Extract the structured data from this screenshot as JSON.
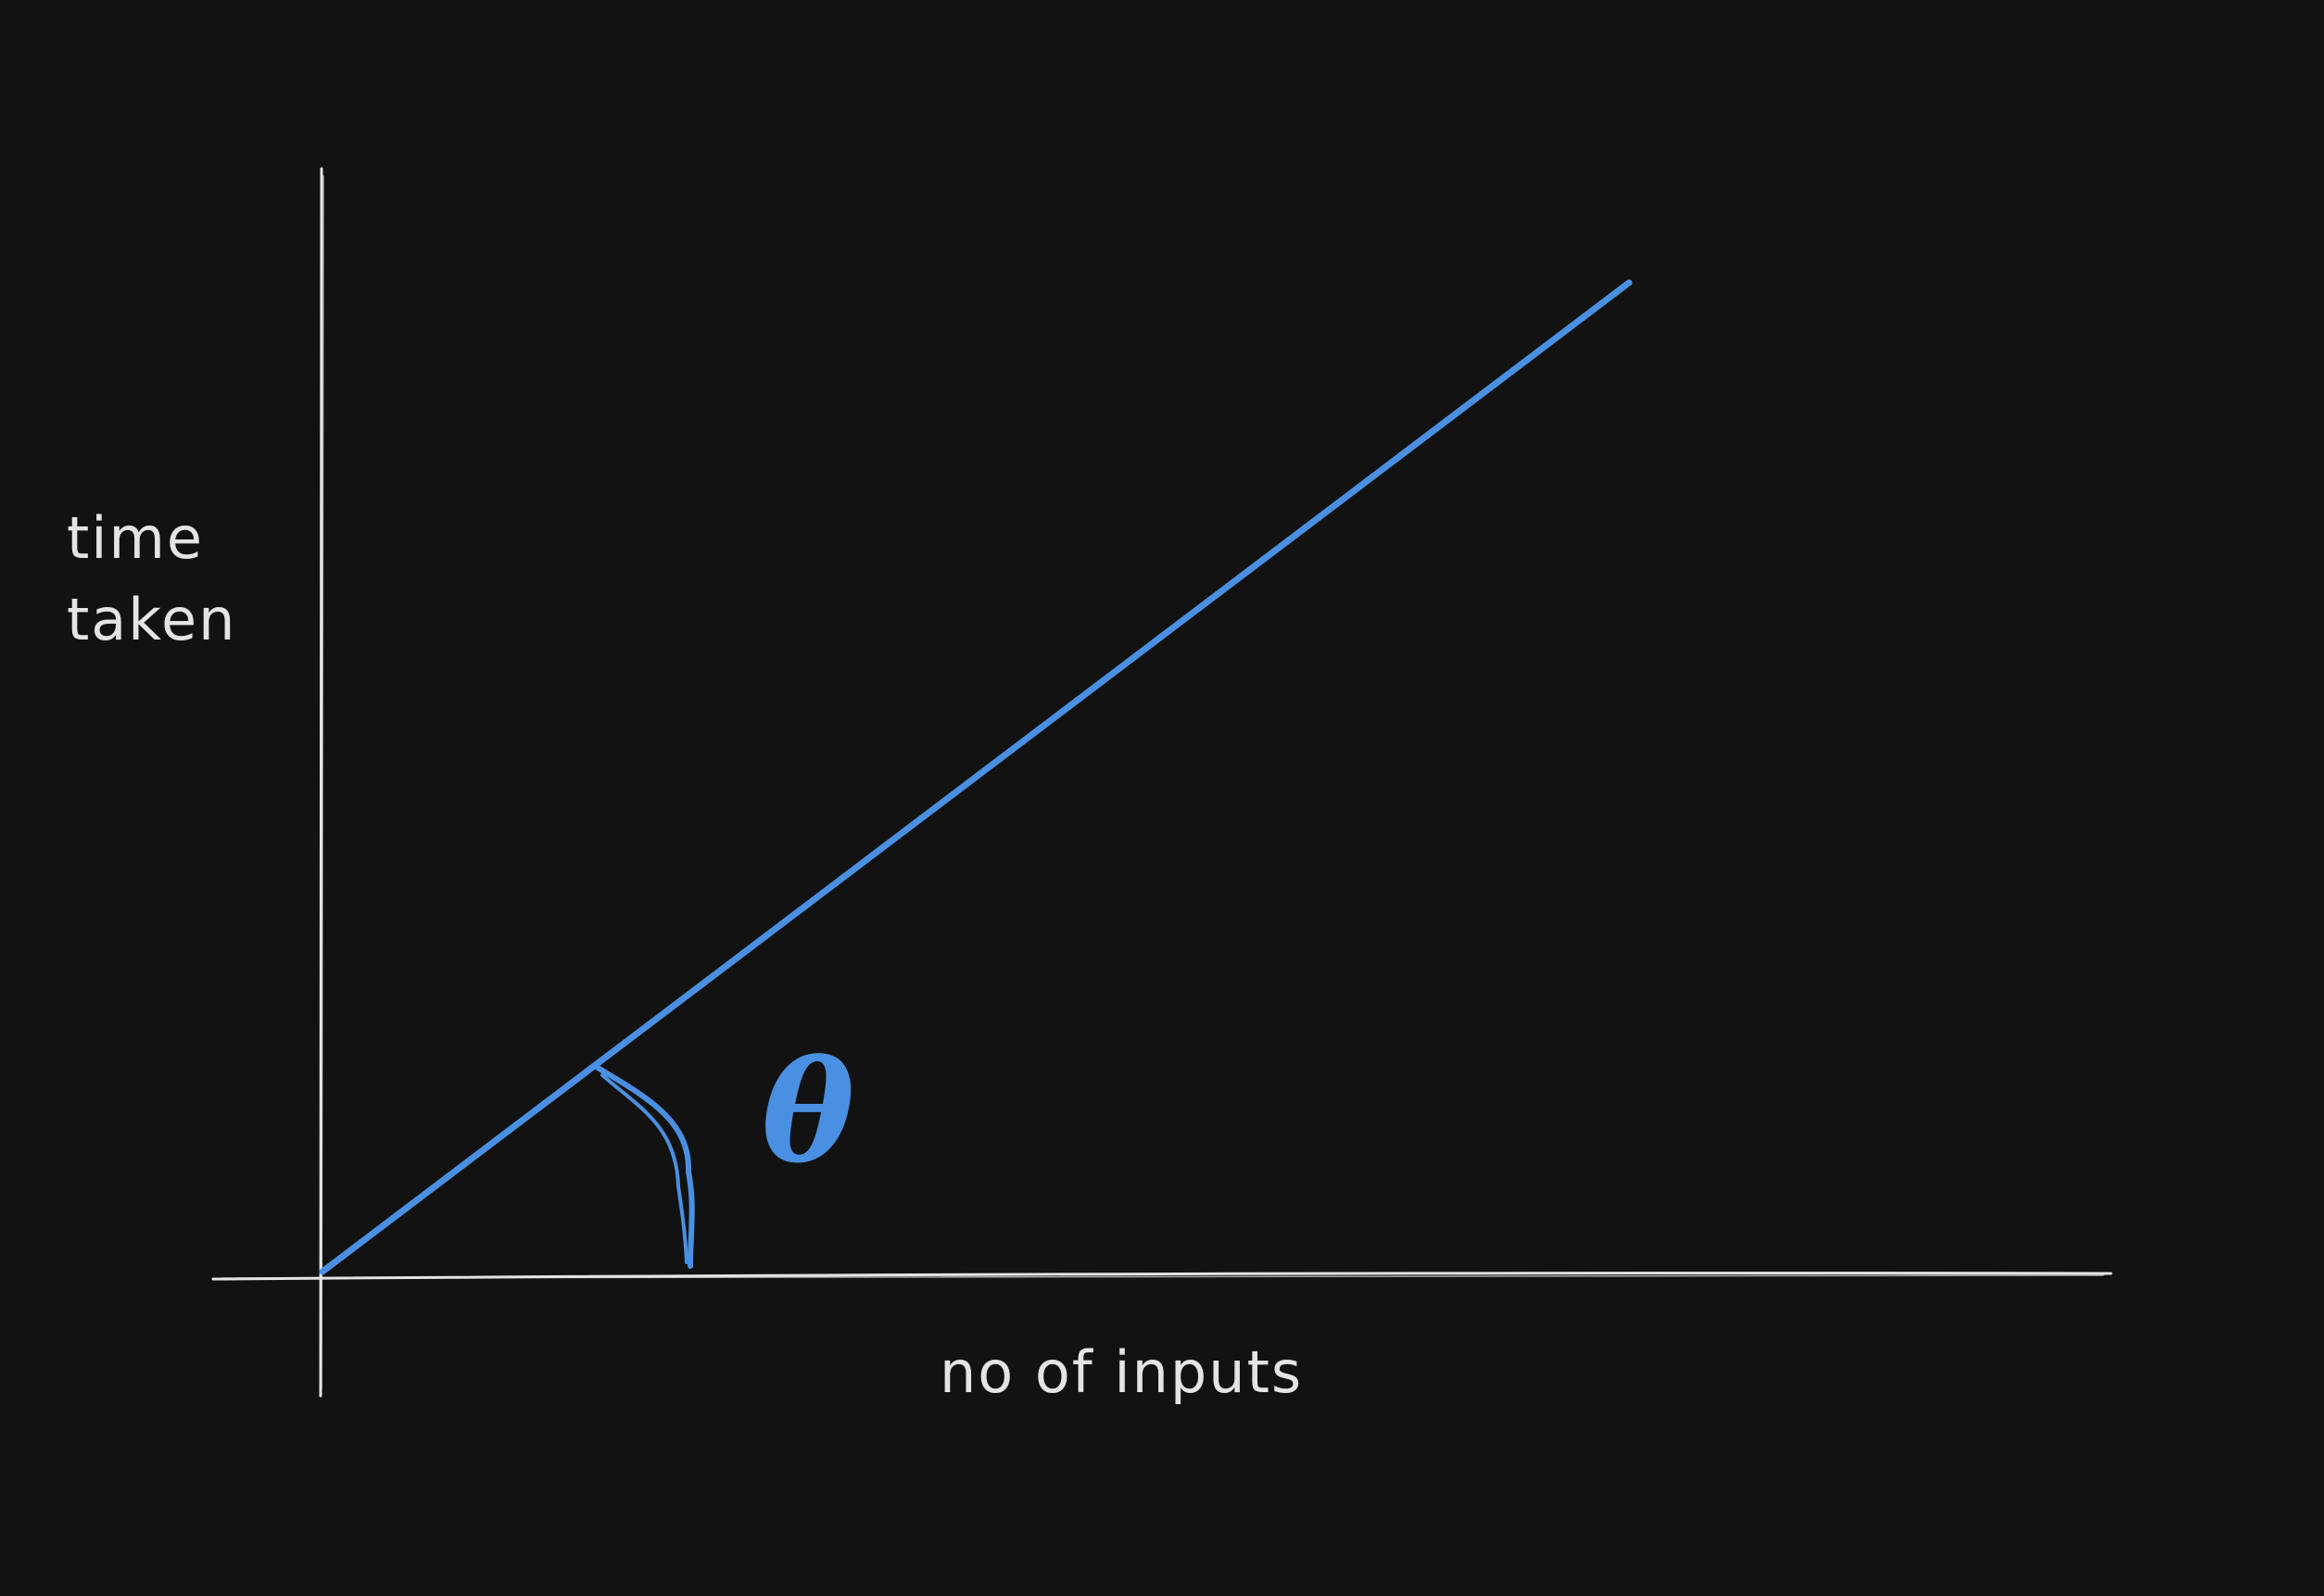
{
  "diagram": {
    "y_axis_label_line1": "time",
    "y_axis_label_line2": "taken",
    "x_axis_label": "no of inputs",
    "angle_symbol": "θ",
    "colors": {
      "background": "#121212",
      "axis": "#e4e4e4",
      "text": "#e4e4e4",
      "accent": "#4a90e2"
    }
  }
}
